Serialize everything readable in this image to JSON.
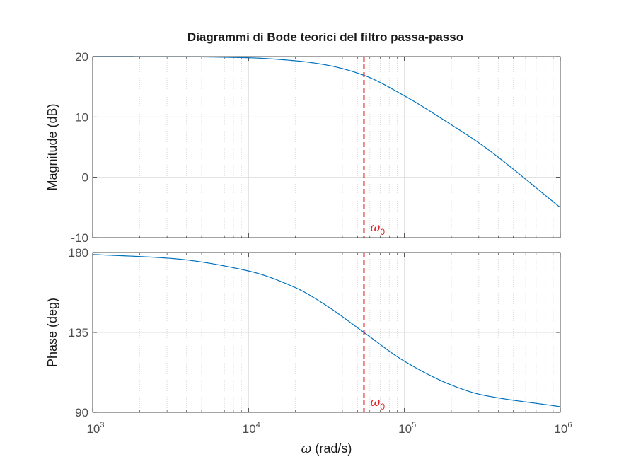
{
  "chart_data": {
    "type": "line",
    "title": "Diagrammi di Bode teorici del filtro passa-passo",
    "xlabel": {
      "symbol": "ω",
      "text": "(rad/s)"
    },
    "xscale": "log",
    "xlim": [
      1000,
      1000000
    ],
    "x_ticks": [
      {
        "base": "10",
        "exp": "3",
        "value": 1000
      },
      {
        "base": "10",
        "exp": "4",
        "value": 10000
      },
      {
        "base": "10",
        "exp": "5",
        "value": 100000
      },
      {
        "base": "10",
        "exp": "6",
        "value": 1000000
      }
    ],
    "grid": true,
    "marker": {
      "x": 55000,
      "label_symbol": "ω",
      "label_sub": "0",
      "color": "#e02020",
      "style": "dashed"
    },
    "color": "#0072bd",
    "panels": [
      {
        "name": "magnitude",
        "ylabel": "Magnitude (dB)",
        "ylim": [
          -10,
          20
        ],
        "yticks": [
          20,
          10,
          0,
          -10
        ],
        "ytick_labels": [
          "20",
          "10",
          "0",
          "-10"
        ],
        "series": [
          {
            "x": [
              1000,
              3162,
              10000,
              20000,
              31623,
              55000,
              100000,
              200000,
              316228,
              1000000
            ],
            "y": [
              20.0,
              19.99,
              19.8,
              19.3,
              18.6,
              16.9,
              13.5,
              8.7,
              5.3,
              -5.0
            ]
          }
        ]
      },
      {
        "name": "phase",
        "ylabel": "Phase (deg)",
        "ylim": [
          90,
          180
        ],
        "yticks": [
          180,
          135,
          90
        ],
        "ytick_labels": [
          "180",
          "135",
          "90"
        ],
        "series": [
          {
            "x": [
              1000,
              3162,
              10000,
              20000,
              31623,
              55000,
              100000,
              200000,
              316228,
              1000000
            ],
            "y": [
              178.9,
              176.7,
              169.6,
              160.2,
              150.1,
              135.0,
              118.8,
              105.4,
              99.8,
              93.2
            ]
          }
        ]
      }
    ]
  }
}
